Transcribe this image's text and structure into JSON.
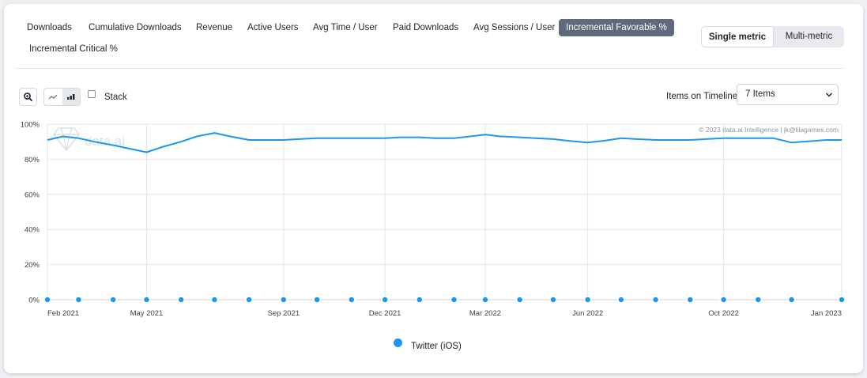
{
  "tabs": [
    {
      "label": "Downloads",
      "active": false
    },
    {
      "label": "Cumulative Downloads",
      "active": false
    },
    {
      "label": "Revenue",
      "active": false
    },
    {
      "label": "Active Users",
      "active": false
    },
    {
      "label": "Avg Time / User",
      "active": false
    },
    {
      "label": "Paid Downloads",
      "active": false
    },
    {
      "label": "Avg Sessions / User",
      "active": false
    },
    {
      "label": "Incremental Favorable %",
      "active": true
    },
    {
      "label": "Incremental Critical %",
      "active": false
    }
  ],
  "metric_toggle": {
    "single": "Single metric",
    "multi": "Multi-metric",
    "selected": "single"
  },
  "toolbar": {
    "stack_label": "Stack",
    "stack_checked": false,
    "timeline_label": "Items on Timeline:",
    "timeline_value": "7 Items",
    "chart_mode": "bar"
  },
  "watermark": "data.ai",
  "copyright": "© 2023 data.ai Intelligence | jk@lilagames.com",
  "colors": {
    "series": "#1c97f0",
    "active_tab": "#5f6a7d",
    "grid": "#e2e4e7"
  },
  "chart_data": {
    "type": "line",
    "title": "",
    "xlabel": "",
    "ylabel": "",
    "ylim": [
      0,
      100
    ],
    "yticks": [
      "0%",
      "20%",
      "40%",
      "60%",
      "80%",
      "100%"
    ],
    "x_tick_labels": [
      "Feb 2021",
      "May 2021",
      "Sep 2021",
      "Dec 2021",
      "Mar 2022",
      "Jun 2022",
      "Oct 2022",
      "Jan 2023"
    ],
    "x": [
      "2021-02-01",
      "2021-02-15",
      "2021-03-01",
      "2021-03-15",
      "2021-04-01",
      "2021-05-01",
      "2021-05-15",
      "2021-06-01",
      "2021-06-15",
      "2021-07-01",
      "2021-07-15",
      "2021-08-01",
      "2021-09-01",
      "2021-09-15",
      "2021-10-01",
      "2021-10-15",
      "2021-11-01",
      "2021-12-01",
      "2021-12-15",
      "2022-01-01",
      "2022-01-15",
      "2022-02-01",
      "2022-03-01",
      "2022-03-15",
      "2022-04-01",
      "2022-04-15",
      "2022-05-01",
      "2022-05-15",
      "2022-06-01",
      "2022-06-15",
      "2022-07-01",
      "2022-07-15",
      "2022-08-01",
      "2022-09-01",
      "2022-09-15",
      "2022-10-01",
      "2022-10-15",
      "2022-11-01",
      "2022-11-15",
      "2022-12-01",
      "2023-01-01",
      "2023-01-15"
    ],
    "legend_position": "bottom",
    "series": [
      {
        "name": "Twitter (iOS)",
        "values": [
          91,
          93,
          92,
          90,
          88,
          84,
          87,
          90,
          93,
          95,
          93,
          91,
          91,
          91.5,
          92,
          92,
          92,
          92,
          92.5,
          92.5,
          92,
          92,
          94,
          93,
          92.5,
          92,
          91.5,
          90.5,
          89.5,
          90.5,
          92,
          91.5,
          91,
          91,
          91.5,
          92,
          92,
          92,
          92,
          89.5,
          91,
          91
        ]
      }
    ]
  }
}
